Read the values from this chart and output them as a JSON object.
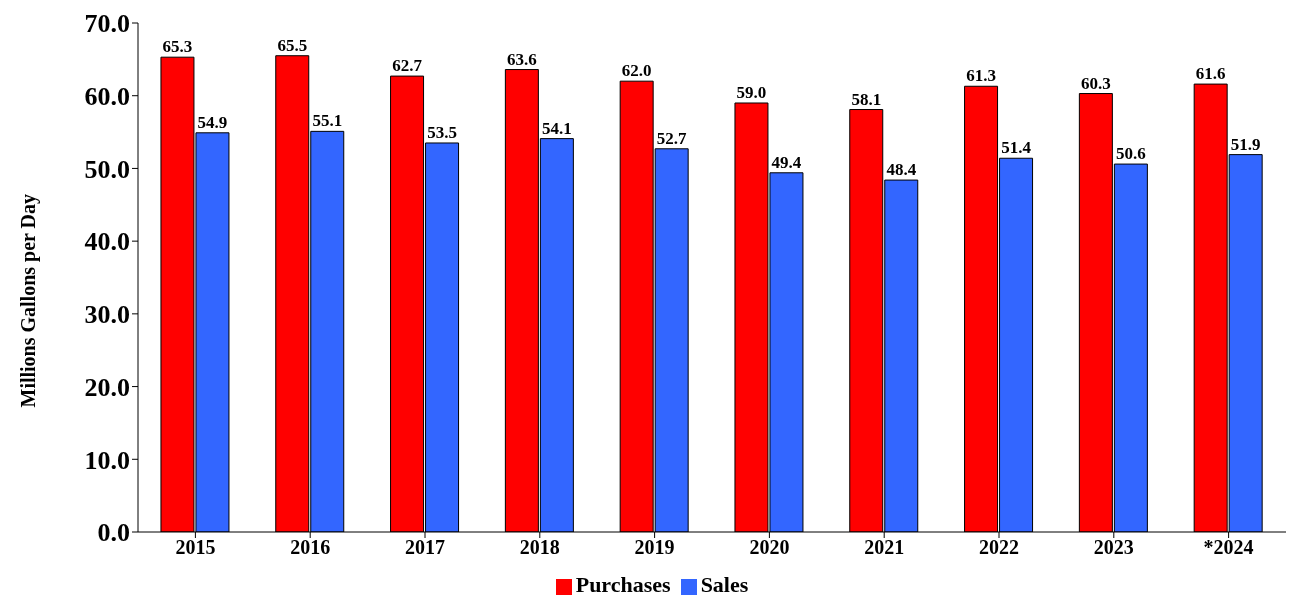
{
  "chart_data": {
    "type": "bar",
    "ylabel": "Millions Gallons per Day",
    "categories": [
      "2015",
      "2016",
      "2017",
      "2018",
      "2019",
      "2020",
      "2021",
      "2022",
      "2023",
      "*2024"
    ],
    "series": [
      {
        "name": "Purchases",
        "color": "#ff0000",
        "values": [
          65.3,
          65.5,
          62.7,
          63.6,
          62.0,
          59.0,
          58.1,
          61.3,
          60.3,
          61.6
        ],
        "value_labels": [
          "65.3",
          "65.5",
          "62.7",
          "63.6",
          "62.0",
          "59.0",
          "58.1",
          "61.3",
          "60.3",
          "61.6"
        ]
      },
      {
        "name": "Sales",
        "color": "#3366ff",
        "values": [
          54.9,
          55.1,
          53.5,
          54.1,
          52.7,
          49.4,
          48.4,
          51.4,
          50.6,
          51.9
        ],
        "value_labels": [
          "54.9",
          "55.1",
          "53.5",
          "54.1",
          "52.7",
          "49.4",
          "48.4",
          "51.4",
          "50.6",
          "51.9"
        ]
      }
    ],
    "ylim": [
      0,
      70
    ],
    "yticks": [
      {
        "value": 0,
        "label": "0.0"
      },
      {
        "value": 10,
        "label": "10.0"
      },
      {
        "value": 20,
        "label": "20.0"
      },
      {
        "value": 30,
        "label": "30.0"
      },
      {
        "value": 40,
        "label": "40.0"
      },
      {
        "value": 50,
        "label": "50.0"
      },
      {
        "value": 60,
        "label": "60.0"
      },
      {
        "value": 70,
        "label": "70.0"
      }
    ],
    "legend": "bottom",
    "grid": false
  }
}
